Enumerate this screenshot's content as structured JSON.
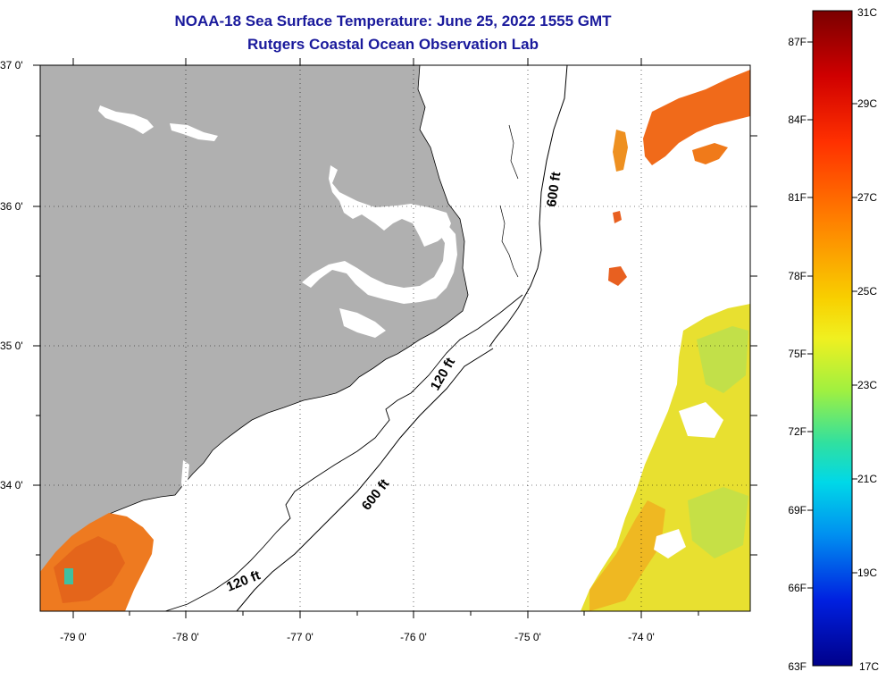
{
  "title_line1": "NOAA-18 Sea Surface Temperature:  June 25, 2022 1555 GMT",
  "title_line2": "Rutgers Coastal Ocean Observation Lab",
  "lat_labels": [
    "37 0'",
    "36 0'",
    "35 0'",
    "34 0'"
  ],
  "lon_labels": [
    "-79 0'",
    "-78 0'",
    "-77 0'",
    "-76 0'",
    "-75 0'",
    "-74 0'"
  ],
  "contour_labels": [
    "600 ft",
    "120 ft",
    "600 ft",
    "120 ft"
  ],
  "colorbar": {
    "celsius": [
      "31C",
      "29C",
      "27C",
      "25C",
      "23C",
      "21C",
      "19C",
      "17C"
    ],
    "fahrenheit": [
      "87F",
      "84F",
      "81F",
      "78F",
      "75F",
      "72F",
      "69F",
      "66F",
      "63F"
    ]
  },
  "colors": {
    "land": "#b0b0b0",
    "title": "#1a1a9c",
    "sst_warm": "#f07a1a",
    "sst_mid": "#e8e820",
    "sst_cool": "#40c0a0"
  }
}
